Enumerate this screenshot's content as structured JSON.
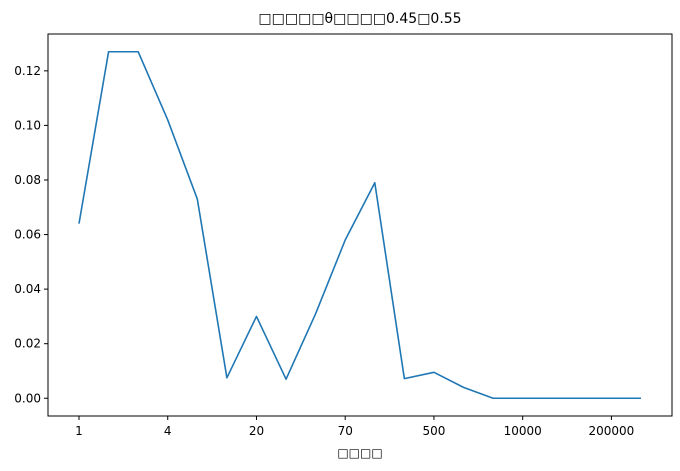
{
  "chart_data": {
    "type": "line",
    "title": "□□□□□θ□□□□0.45□0.55",
    "xlabel": "□□□□",
    "ylabel": "",
    "x_tick_labels": [
      "1",
      "4",
      "20",
      "70",
      "500",
      "10000",
      "200000"
    ],
    "x_tick_positions": [
      0,
      3,
      6,
      9,
      12,
      15,
      18
    ],
    "ylim": [
      -0.0065,
      0.1335
    ],
    "y_ticks": [
      0.0,
      0.02,
      0.04,
      0.06,
      0.08,
      0.1,
      0.12
    ],
    "grid": false,
    "series": [
      {
        "name": "",
        "color": "#1f77b4",
        "values": [
          0.064,
          0.127,
          0.127,
          0.102,
          0.073,
          0.0075,
          0.03,
          0.007,
          0.031,
          0.058,
          0.079,
          0.0072,
          0.0095,
          0.004,
          0.0,
          0.0,
          0.0,
          0.0,
          0.0,
          0.0
        ]
      }
    ]
  }
}
